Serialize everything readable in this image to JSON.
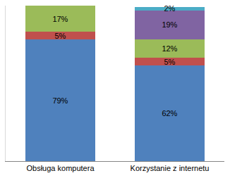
{
  "chart_data": {
    "type": "bar",
    "stacked": true,
    "data_labels": true,
    "tick_labels": "x",
    "grid": false,
    "categories": [
      "Obsługa komputera",
      "Korzystanie z internetu"
    ],
    "ylim": [
      0,
      101
    ],
    "series": [
      {
        "color": "#4f81bd",
        "values": [
          79,
          62
        ],
        "value_labels": [
          "79%",
          "62%"
        ]
      },
      {
        "color": "#c0504d",
        "values": [
          5,
          5
        ],
        "value_labels": [
          "5%",
          "5%"
        ]
      },
      {
        "color": "#9bbb59",
        "values": [
          17,
          12
        ],
        "value_labels": [
          "17%",
          "12%"
        ]
      },
      {
        "color": "#8064a2",
        "values": [
          null,
          19
        ],
        "value_labels": [
          null,
          "19%"
        ]
      },
      {
        "color": "#4bacc6",
        "values": [
          null,
          2
        ],
        "value_labels": [
          null,
          "2%"
        ]
      }
    ]
  }
}
